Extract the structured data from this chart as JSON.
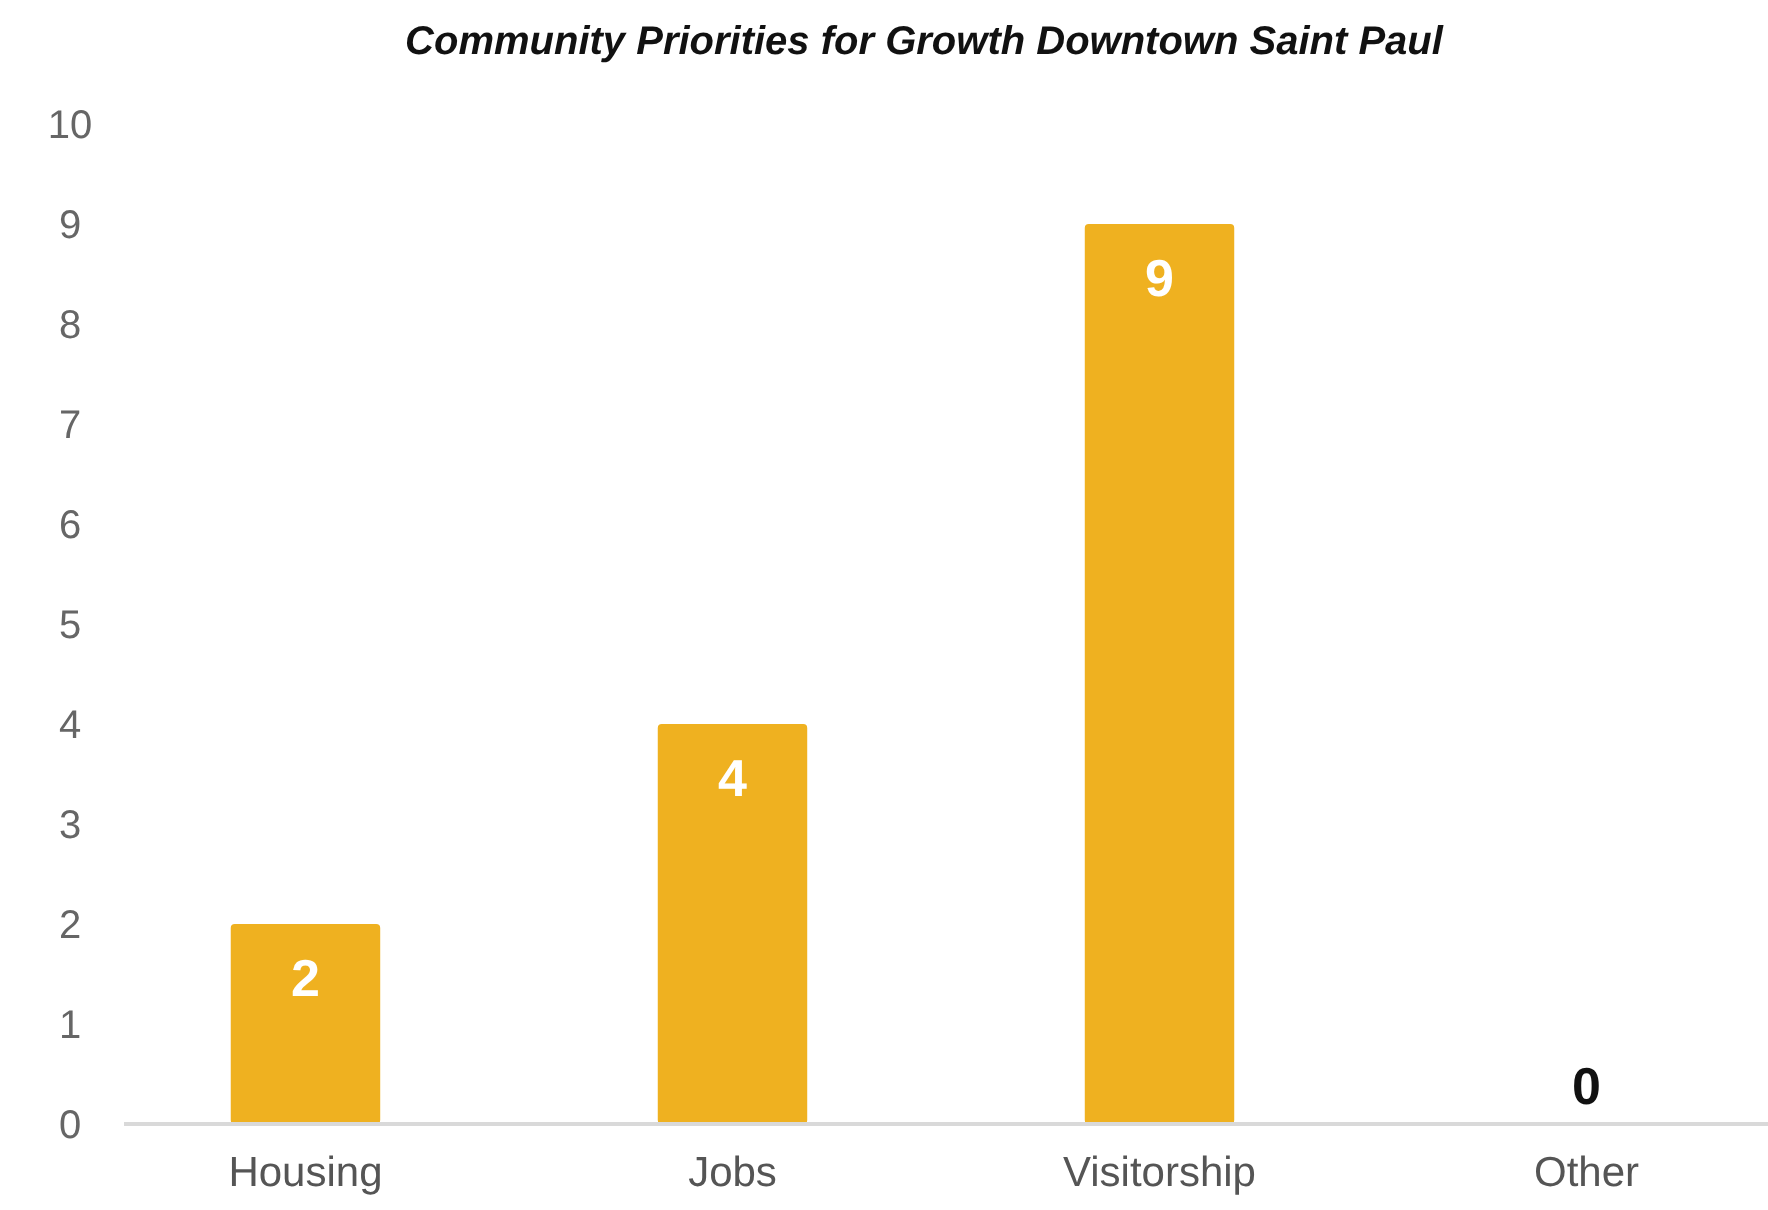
{
  "chart_data": {
    "type": "bar",
    "title": "Community Priorities for Growth Downtown Saint Paul",
    "categories": [
      "Housing",
      "Jobs",
      "Visitorship",
      "Other"
    ],
    "values": [
      2,
      4,
      9,
      0
    ],
    "color": "#efb120",
    "ylim": [
      0,
      10
    ],
    "yticks": [
      0,
      1,
      2,
      3,
      4,
      5,
      6,
      7,
      8,
      9,
      10
    ],
    "grid": false,
    "data_labels": true
  }
}
